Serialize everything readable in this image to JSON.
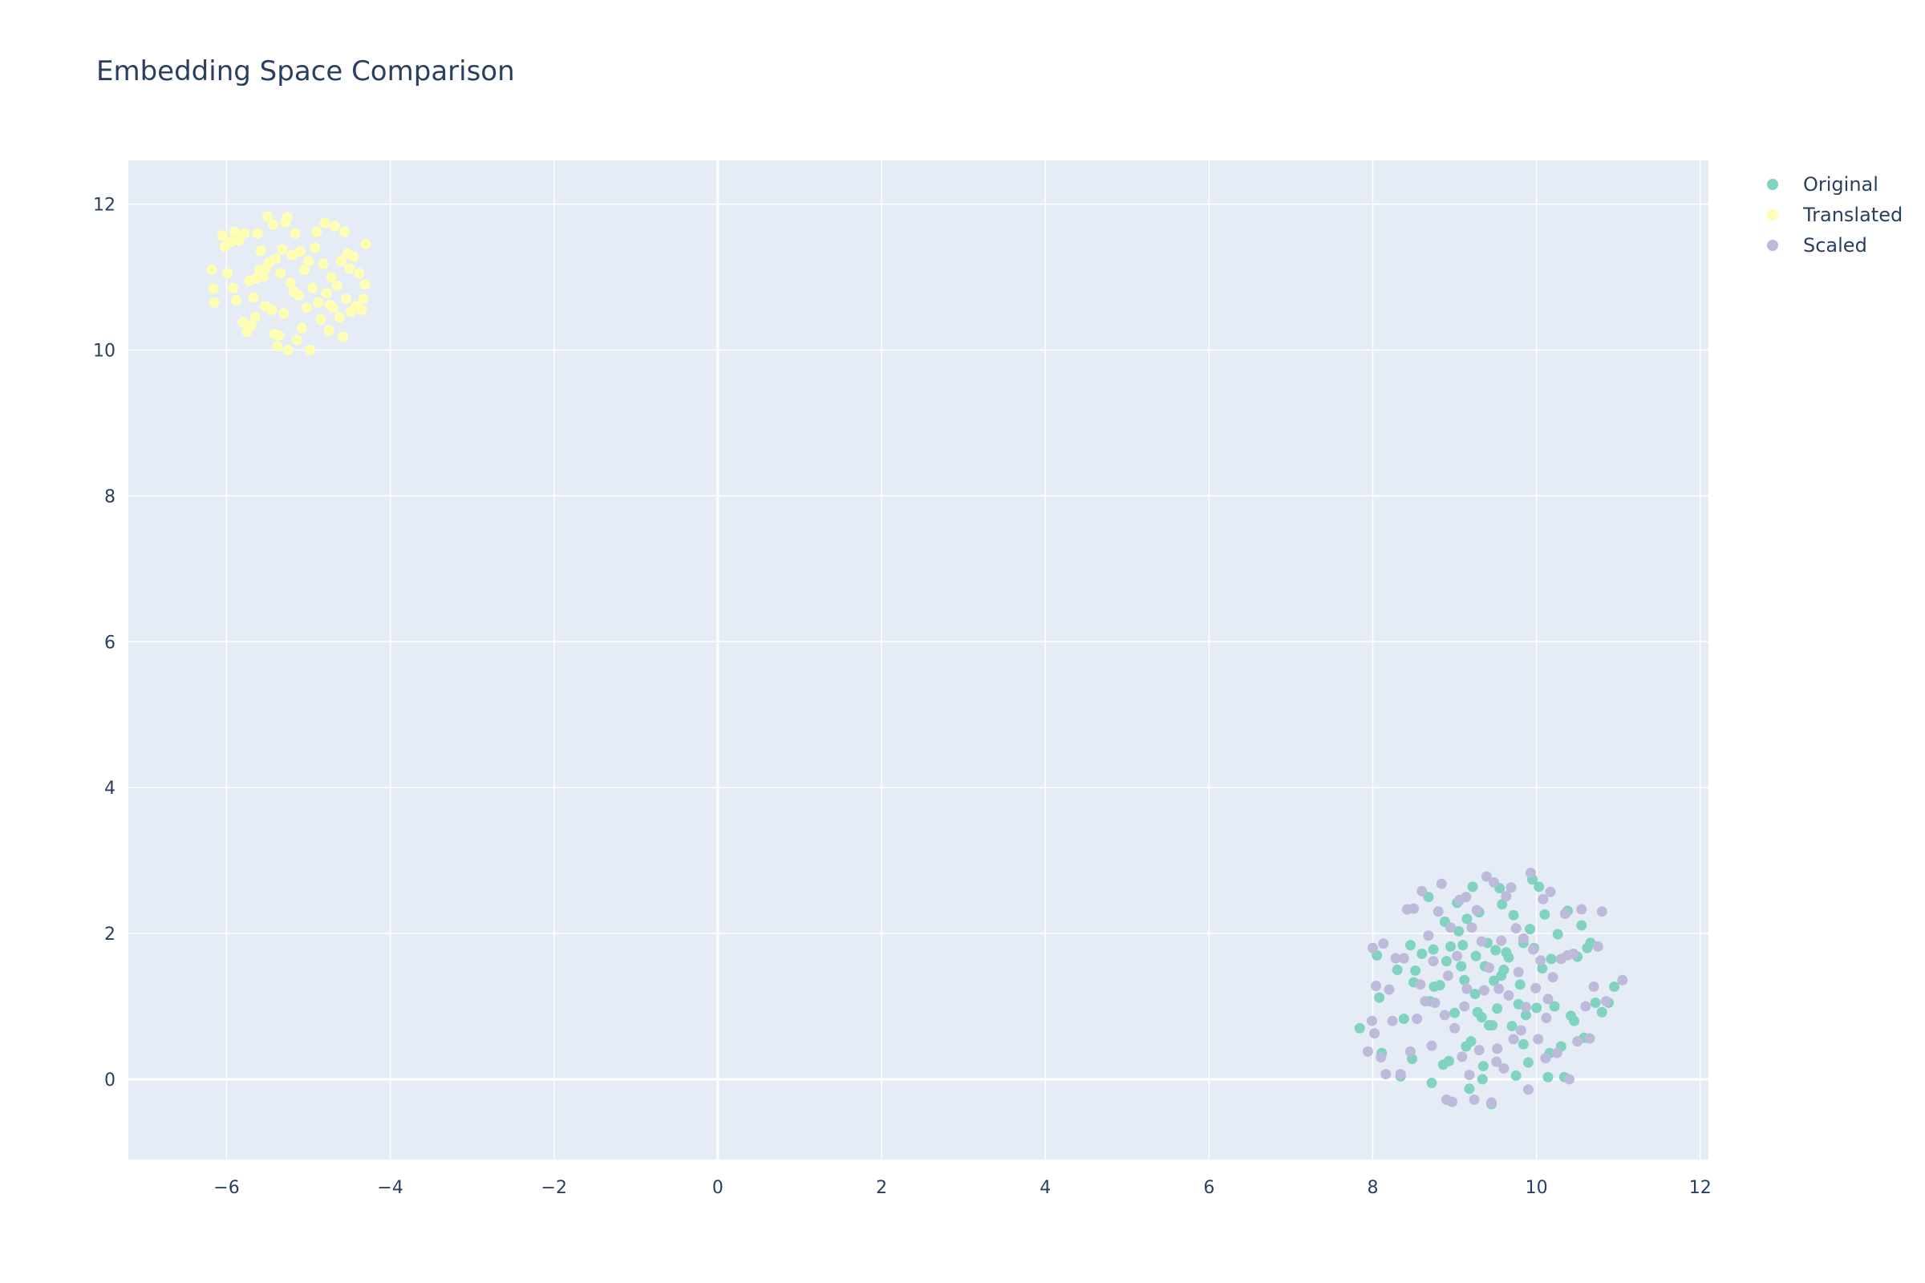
{
  "chart_data": {
    "type": "scatter",
    "title": "Embedding Space Comparison",
    "xlabel": "",
    "ylabel": "",
    "xlim": [
      -7.2,
      12.1
    ],
    "ylim": [
      -1.1,
      12.6
    ],
    "x_ticks": [
      -6,
      -4,
      -2,
      0,
      2,
      4,
      6,
      8,
      10,
      12
    ],
    "x_tick_labels": [
      "−6",
      "−4",
      "−2",
      "0",
      "2",
      "4",
      "6",
      "8",
      "10",
      "12"
    ],
    "y_ticks": [
      0,
      2,
      4,
      6,
      8,
      10,
      12
    ],
    "y_tick_labels": [
      "0",
      "2",
      "4",
      "6",
      "8",
      "10",
      "12"
    ],
    "grid": true,
    "plot_background": "#e5ecf6",
    "legend_position": "top-right",
    "series": [
      {
        "name": "Original",
        "color": "#7fd3c0",
        "points": [
          [
            7.84,
            0.7
          ],
          [
            8.05,
            1.7
          ],
          [
            8.08,
            1.12
          ],
          [
            8.11,
            0.36
          ],
          [
            8.3,
            1.5
          ],
          [
            8.34,
            0.04
          ],
          [
            8.38,
            0.83
          ],
          [
            8.46,
            1.84
          ],
          [
            8.48,
            0.28
          ],
          [
            8.5,
            1.33
          ],
          [
            8.52,
            1.49
          ],
          [
            8.6,
            1.72
          ],
          [
            8.68,
            2.5
          ],
          [
            8.7,
            1.07
          ],
          [
            8.72,
            -0.05
          ],
          [
            8.74,
            1.78
          ],
          [
            8.75,
            1.27
          ],
          [
            8.82,
            1.29
          ],
          [
            8.86,
            0.2
          ],
          [
            8.88,
            2.16
          ],
          [
            8.93,
            0.25
          ],
          [
            8.95,
            1.82
          ],
          [
            9.0,
            0.91
          ],
          [
            9.03,
            2.42
          ],
          [
            9.05,
            2.03
          ],
          [
            9.08,
            1.55
          ],
          [
            9.1,
            1.84
          ],
          [
            9.12,
            1.36
          ],
          [
            9.15,
            2.2
          ],
          [
            9.18,
            -0.13
          ],
          [
            9.2,
            0.52
          ],
          [
            9.22,
            2.64
          ],
          [
            9.25,
            1.17
          ],
          [
            9.28,
            0.92
          ],
          [
            9.3,
            2.29
          ],
          [
            9.33,
            0.85
          ],
          [
            9.35,
            0.18
          ],
          [
            9.37,
            1.55
          ],
          [
            9.4,
            1.87
          ],
          [
            9.42,
            0.74
          ],
          [
            9.45,
            -0.34
          ],
          [
            9.48,
            1.35
          ],
          [
            9.5,
            1.77
          ],
          [
            9.52,
            0.97
          ],
          [
            9.55,
            2.62
          ],
          [
            9.57,
            1.42
          ],
          [
            9.6,
            1.5
          ],
          [
            9.63,
            1.74
          ],
          [
            9.66,
            1.67
          ],
          [
            9.7,
            0.73
          ],
          [
            9.72,
            2.25
          ],
          [
            9.75,
            0.05
          ],
          [
            9.78,
            1.03
          ],
          [
            9.8,
            1.3
          ],
          [
            9.84,
            1.87
          ],
          [
            9.87,
            0.88
          ],
          [
            9.9,
            0.23
          ],
          [
            9.92,
            2.06
          ],
          [
            9.95,
            2.74
          ],
          [
            9.97,
            1.8
          ],
          [
            10.0,
            0.98
          ],
          [
            10.03,
            2.64
          ],
          [
            10.07,
            1.52
          ],
          [
            10.1,
            2.26
          ],
          [
            10.14,
            0.03
          ],
          [
            10.18,
            1.65
          ],
          [
            10.22,
            1.0
          ],
          [
            10.26,
            1.99
          ],
          [
            10.3,
            0.45
          ],
          [
            10.34,
            0.03
          ],
          [
            10.38,
            2.31
          ],
          [
            10.42,
            0.87
          ],
          [
            10.46,
            0.8
          ],
          [
            10.5,
            1.68
          ],
          [
            10.55,
            2.11
          ],
          [
            10.58,
            0.57
          ],
          [
            10.62,
            1.8
          ],
          [
            10.66,
            1.87
          ],
          [
            10.72,
            1.05
          ],
          [
            10.8,
            0.92
          ],
          [
            10.88,
            1.05
          ],
          [
            10.95,
            1.27
          ],
          [
            9.14,
            0.45
          ],
          [
            9.46,
            0.74
          ],
          [
            8.9,
            1.62
          ],
          [
            9.26,
            1.69
          ],
          [
            9.58,
            2.4
          ],
          [
            9.84,
            0.48
          ],
          [
            10.16,
            0.36
          ],
          [
            9.34,
            0.0
          ]
        ]
      },
      {
        "name": "Translated",
        "color": "#ffffb3",
        "points": [
          [
            -6.18,
            11.1
          ],
          [
            -6.16,
            10.84
          ],
          [
            -6.15,
            10.65
          ],
          [
            -6.05,
            11.57
          ],
          [
            -6.02,
            11.42
          ],
          [
            -5.99,
            11.05
          ],
          [
            -5.95,
            11.48
          ],
          [
            -5.92,
            10.85
          ],
          [
            -5.9,
            11.62
          ],
          [
            -5.88,
            10.68
          ],
          [
            -5.85,
            11.5
          ],
          [
            -5.8,
            10.38
          ],
          [
            -5.78,
            11.6
          ],
          [
            -5.75,
            10.25
          ],
          [
            -5.72,
            10.95
          ],
          [
            -5.7,
            10.33
          ],
          [
            -5.67,
            10.72
          ],
          [
            -5.65,
            10.45
          ],
          [
            -5.62,
            11.6
          ],
          [
            -5.6,
            11.1
          ],
          [
            -5.58,
            11.36
          ],
          [
            -5.55,
            11.01
          ],
          [
            -5.53,
            10.6
          ],
          [
            -5.5,
            11.83
          ],
          [
            -5.48,
            11.2
          ],
          [
            -5.45,
            10.55
          ],
          [
            -5.43,
            11.72
          ],
          [
            -5.4,
            11.25
          ],
          [
            -5.38,
            10.05
          ],
          [
            -5.36,
            10.2
          ],
          [
            -5.34,
            11.05
          ],
          [
            -5.32,
            11.38
          ],
          [
            -5.3,
            10.5
          ],
          [
            -5.28,
            11.75
          ],
          [
            -5.25,
            10.0
          ],
          [
            -5.22,
            10.92
          ],
          [
            -5.2,
            11.3
          ],
          [
            -5.18,
            10.8
          ],
          [
            -5.16,
            11.6
          ],
          [
            -5.14,
            10.14
          ],
          [
            -5.12,
            10.75
          ],
          [
            -5.1,
            11.35
          ],
          [
            -5.08,
            10.3
          ],
          [
            -5.05,
            11.1
          ],
          [
            -5.02,
            10.58
          ],
          [
            -5.0,
            11.22
          ],
          [
            -4.98,
            10.0
          ],
          [
            -4.95,
            10.85
          ],
          [
            -4.92,
            11.4
          ],
          [
            -4.9,
            11.62
          ],
          [
            -4.88,
            10.65
          ],
          [
            -4.85,
            10.42
          ],
          [
            -4.82,
            11.18
          ],
          [
            -4.8,
            11.74
          ],
          [
            -4.78,
            10.78
          ],
          [
            -4.75,
            10.27
          ],
          [
            -4.72,
            11.0
          ],
          [
            -4.7,
            10.58
          ],
          [
            -4.68,
            11.7
          ],
          [
            -4.65,
            10.88
          ],
          [
            -4.62,
            10.45
          ],
          [
            -4.6,
            11.22
          ],
          [
            -4.58,
            10.18
          ],
          [
            -4.56,
            11.62
          ],
          [
            -4.54,
            10.7
          ],
          [
            -4.52,
            11.32
          ],
          [
            -4.5,
            11.12
          ],
          [
            -4.48,
            10.52
          ],
          [
            -4.45,
            11.28
          ],
          [
            -4.42,
            10.6
          ],
          [
            -4.38,
            11.05
          ],
          [
            -4.35,
            10.55
          ],
          [
            -4.33,
            10.7
          ],
          [
            -4.31,
            10.9
          ],
          [
            -4.3,
            11.45
          ],
          [
            -5.52,
            11.12
          ],
          [
            -5.26,
            11.82
          ],
          [
            -5.42,
            10.22
          ],
          [
            -4.74,
            10.62
          ],
          [
            -5.64,
            10.98
          ]
        ]
      },
      {
        "name": "Scaled",
        "color": "#bebada",
        "points": [
          [
            7.94,
            0.38
          ],
          [
            7.99,
            0.8
          ],
          [
            8.0,
            1.8
          ],
          [
            8.02,
            0.63
          ],
          [
            8.04,
            1.28
          ],
          [
            8.1,
            0.3
          ],
          [
            8.13,
            1.86
          ],
          [
            8.16,
            0.07
          ],
          [
            8.2,
            1.23
          ],
          [
            8.24,
            0.8
          ],
          [
            8.28,
            1.66
          ],
          [
            8.34,
            0.07
          ],
          [
            8.38,
            1.66
          ],
          [
            8.42,
            2.33
          ],
          [
            8.46,
            0.38
          ],
          [
            8.5,
            2.34
          ],
          [
            8.54,
            0.83
          ],
          [
            8.58,
            1.3
          ],
          [
            8.6,
            2.58
          ],
          [
            8.64,
            1.07
          ],
          [
            8.68,
            1.97
          ],
          [
            8.72,
            0.46
          ],
          [
            8.76,
            1.05
          ],
          [
            8.8,
            2.3
          ],
          [
            8.84,
            2.68
          ],
          [
            8.88,
            0.88
          ],
          [
            8.9,
            -0.28
          ],
          [
            8.92,
            1.42
          ],
          [
            8.95,
            2.08
          ],
          [
            8.97,
            -0.31
          ],
          [
            9.0,
            0.7
          ],
          [
            9.03,
            1.69
          ],
          [
            9.06,
            2.46
          ],
          [
            9.09,
            0.31
          ],
          [
            9.12,
            1.0
          ],
          [
            9.15,
            1.24
          ],
          [
            9.18,
            0.06
          ],
          [
            9.21,
            2.08
          ],
          [
            9.24,
            -0.28
          ],
          [
            9.27,
            2.32
          ],
          [
            9.3,
            0.4
          ],
          [
            9.33,
            1.89
          ],
          [
            9.36,
            1.22
          ],
          [
            9.39,
            2.78
          ],
          [
            9.42,
            1.53
          ],
          [
            9.45,
            -0.32
          ],
          [
            9.48,
            2.7
          ],
          [
            9.51,
            0.24
          ],
          [
            9.54,
            1.24
          ],
          [
            9.57,
            1.9
          ],
          [
            9.6,
            0.15
          ],
          [
            9.63,
            2.51
          ],
          [
            9.66,
            1.15
          ],
          [
            9.69,
            2.63
          ],
          [
            9.72,
            0.55
          ],
          [
            9.75,
            2.07
          ],
          [
            9.78,
            1.47
          ],
          [
            9.81,
            0.67
          ],
          [
            9.84,
            1.93
          ],
          [
            9.87,
            0.99
          ],
          [
            9.9,
            -0.14
          ],
          [
            9.93,
            2.83
          ],
          [
            9.96,
            1.78
          ],
          [
            9.99,
            1.25
          ],
          [
            10.02,
            0.55
          ],
          [
            10.05,
            1.63
          ],
          [
            10.08,
            2.47
          ],
          [
            10.11,
            0.29
          ],
          [
            10.14,
            1.1
          ],
          [
            10.17,
            2.57
          ],
          [
            10.2,
            1.4
          ],
          [
            10.25,
            0.36
          ],
          [
            10.3,
            1.65
          ],
          [
            10.35,
            2.27
          ],
          [
            10.4,
            0.0
          ],
          [
            10.45,
            1.72
          ],
          [
            10.5,
            0.52
          ],
          [
            10.55,
            2.33
          ],
          [
            10.6,
            1.0
          ],
          [
            10.65,
            0.56
          ],
          [
            10.7,
            1.27
          ],
          [
            10.75,
            1.82
          ],
          [
            10.8,
            2.3
          ],
          [
            10.85,
            1.07
          ],
          [
            11.05,
            1.36
          ],
          [
            10.38,
            1.7
          ],
          [
            9.52,
            0.42
          ],
          [
            8.74,
            1.62
          ],
          [
            9.14,
            2.5
          ],
          [
            10.12,
            0.84
          ]
        ]
      }
    ]
  }
}
